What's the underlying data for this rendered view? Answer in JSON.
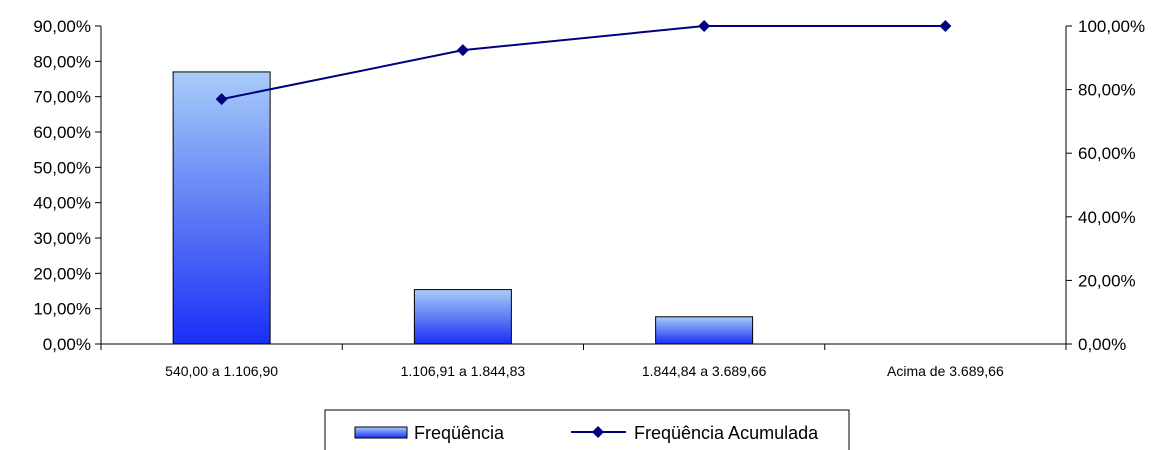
{
  "chart_data": {
    "type": "bar",
    "categories": [
      "540,00 a 1.106,90",
      "1.106,91 a 1.844,83",
      "1.844,84 a 3.689,66",
      "Acima de  3.689,66"
    ],
    "series": [
      {
        "name": "Freqüência",
        "type": "bar",
        "axis": "left",
        "values": [
          77.0,
          15.4,
          7.7,
          0.0
        ],
        "color_top": "#a8cdf8",
        "color_bottom": "#1a2ef5"
      },
      {
        "name": "Freqüência Acumulada",
        "type": "line",
        "axis": "right",
        "values": [
          77.0,
          92.4,
          100.0,
          100.0
        ],
        "color": "#000080"
      }
    ],
    "y_left": {
      "min": 0,
      "max": 90,
      "ticks": [
        "0,00%",
        "10,00%",
        "20,00%",
        "30,00%",
        "40,00%",
        "50,00%",
        "60,00%",
        "70,00%",
        "80,00%",
        "90,00%"
      ]
    },
    "y_right": {
      "min": 0,
      "max": 100,
      "ticks": [
        "0,00%",
        "20,00%",
        "40,00%",
        "60,00%",
        "80,00%",
        "100,00%"
      ]
    },
    "grid": false,
    "legend_position": "bottom"
  }
}
